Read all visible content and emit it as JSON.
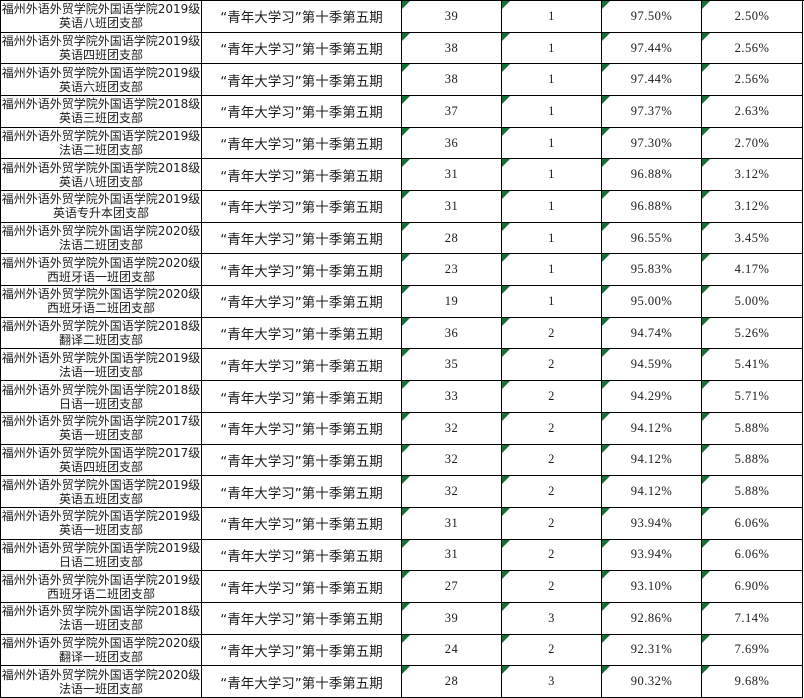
{
  "colors": {
    "border": "#000000",
    "text": "#1b1b1b",
    "excel_triangle_green": "#166f35",
    "background": "#ffffff"
  },
  "table": {
    "period": "“青年大学习”第十季第五期",
    "rows": [
      {
        "org": "福州外语外贸学院外国语学院2019级",
        "branch": "英语八班团支部",
        "num_completed": "39",
        "num_uncompleted": "1",
        "completion_rate": "97.50%",
        "uncompleted_rate": "2.50%"
      },
      {
        "org": "福州外语外贸学院外国语学院2019级",
        "branch": "英语四班团支部",
        "num_completed": "38",
        "num_uncompleted": "1",
        "completion_rate": "97.44%",
        "uncompleted_rate": "2.56%"
      },
      {
        "org": "福州外语外贸学院外国语学院2019级",
        "branch": "英语六班团支部",
        "num_completed": "38",
        "num_uncompleted": "1",
        "completion_rate": "97.44%",
        "uncompleted_rate": "2.56%"
      },
      {
        "org": "福州外语外贸学院外国语学院2018级",
        "branch": "英语三班团支部",
        "num_completed": "37",
        "num_uncompleted": "1",
        "completion_rate": "97.37%",
        "uncompleted_rate": "2.63%"
      },
      {
        "org": "福州外语外贸学院外国语学院2019级",
        "branch": "法语二班团支部",
        "num_completed": "36",
        "num_uncompleted": "1",
        "completion_rate": "97.30%",
        "uncompleted_rate": "2.70%"
      },
      {
        "org": "福州外语外贸学院外国语学院2018级",
        "branch": "英语八班团支部",
        "num_completed": "31",
        "num_uncompleted": "1",
        "completion_rate": "96.88%",
        "uncompleted_rate": "3.12%"
      },
      {
        "org": "福州外语外贸学院外国语学院2019级",
        "branch": "英语专升本团支部",
        "num_completed": "31",
        "num_uncompleted": "1",
        "completion_rate": "96.88%",
        "uncompleted_rate": "3.12%"
      },
      {
        "org": "福州外语外贸学院外国语学院2020级",
        "branch": "法语二班团支部",
        "num_completed": "28",
        "num_uncompleted": "1",
        "completion_rate": "96.55%",
        "uncompleted_rate": "3.45%"
      },
      {
        "org": "福州外语外贸学院外国语学院2020级",
        "branch": "西班牙语一班团支部",
        "num_completed": "23",
        "num_uncompleted": "1",
        "completion_rate": "95.83%",
        "uncompleted_rate": "4.17%"
      },
      {
        "org": "福州外语外贸学院外国语学院2020级",
        "branch": "西班牙语二班团支部",
        "num_completed": "19",
        "num_uncompleted": "1",
        "completion_rate": "95.00%",
        "uncompleted_rate": "5.00%"
      },
      {
        "org": "福州外语外贸学院外国语学院2018级",
        "branch": "翻译二班团支部",
        "num_completed": "36",
        "num_uncompleted": "2",
        "completion_rate": "94.74%",
        "uncompleted_rate": "5.26%"
      },
      {
        "org": "福州外语外贸学院外国语学院2019级",
        "branch": "法语一班团支部",
        "num_completed": "35",
        "num_uncompleted": "2",
        "completion_rate": "94.59%",
        "uncompleted_rate": "5.41%"
      },
      {
        "org": "福州外语外贸学院外国语学院2018级",
        "branch": "日语一班团支部",
        "num_completed": "33",
        "num_uncompleted": "2",
        "completion_rate": "94.29%",
        "uncompleted_rate": "5.71%"
      },
      {
        "org": "福州外语外贸学院外国语学院2017级",
        "branch": "英语一班团支部",
        "num_completed": "32",
        "num_uncompleted": "2",
        "completion_rate": "94.12%",
        "uncompleted_rate": "5.88%"
      },
      {
        "org": "福州外语外贸学院外国语学院2017级",
        "branch": "英语四班团支部",
        "num_completed": "32",
        "num_uncompleted": "2",
        "completion_rate": "94.12%",
        "uncompleted_rate": "5.88%"
      },
      {
        "org": "福州外语外贸学院外国语学院2019级",
        "branch": "英语五班团支部",
        "num_completed": "32",
        "num_uncompleted": "2",
        "completion_rate": "94.12%",
        "uncompleted_rate": "5.88%"
      },
      {
        "org": "福州外语外贸学院外国语学院2019级",
        "branch": "英语一班团支部",
        "num_completed": "31",
        "num_uncompleted": "2",
        "completion_rate": "93.94%",
        "uncompleted_rate": "6.06%"
      },
      {
        "org": "福州外语外贸学院外国语学院2019级",
        "branch": "日语二班团支部",
        "num_completed": "31",
        "num_uncompleted": "2",
        "completion_rate": "93.94%",
        "uncompleted_rate": "6.06%"
      },
      {
        "org": "福州外语外贸学院外国语学院2019级",
        "branch": "西班牙语二班团支部",
        "num_completed": "27",
        "num_uncompleted": "2",
        "completion_rate": "93.10%",
        "uncompleted_rate": "6.90%"
      },
      {
        "org": "福州外语外贸学院外国语学院2018级",
        "branch": "法语一班团支部",
        "num_completed": "39",
        "num_uncompleted": "3",
        "completion_rate": "92.86%",
        "uncompleted_rate": "7.14%"
      },
      {
        "org": "福州外语外贸学院外国语学院2020级",
        "branch": "翻译一班团支部",
        "num_completed": "24",
        "num_uncompleted": "2",
        "completion_rate": "92.31%",
        "uncompleted_rate": "7.69%"
      },
      {
        "org": "福州外语外贸学院外国语学院2020级",
        "branch": "法语一班团支部",
        "num_completed": "28",
        "num_uncompleted": "3",
        "completion_rate": "90.32%",
        "uncompleted_rate": "9.68%"
      }
    ]
  }
}
